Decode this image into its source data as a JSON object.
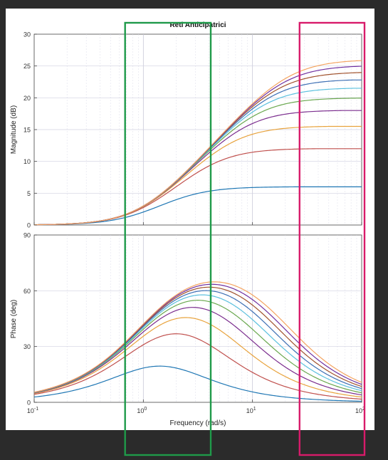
{
  "figure": {
    "title": "Reti Anticipatrici",
    "xlabel": "Frequency  (rad/s)",
    "xscale": "log",
    "xlim": [
      0.1,
      100
    ],
    "x_ticks": [
      {
        "base": "10",
        "exp": "-1"
      },
      {
        "base": "10",
        "exp": "0"
      },
      {
        "base": "10",
        "exp": "1"
      },
      {
        "base": "10",
        "exp": "2"
      }
    ],
    "grid": true,
    "background": "#ffffff",
    "outer_background": "#2b2b2b",
    "highlight_colors": {
      "green": "#1f9a4a",
      "magenta": "#d81b6a"
    },
    "series_colors": [
      "#1f77b4",
      "#c0504d",
      "#e8a33d",
      "#7b2d8e",
      "#6aa84f",
      "#5bc0de",
      "#3d6fb4",
      "#a0522d",
      "#7030a0",
      "#f4a460"
    ]
  },
  "chart_data": [
    {
      "type": "line",
      "title": "Reti Anticipatrici",
      "xlabel": "",
      "ylabel": "Magnitude (dB)",
      "xscale": "log",
      "xlim": [
        0.1,
        100
      ],
      "ylim": [
        0,
        30
      ],
      "y_ticks": [
        "0",
        "5",
        "10",
        "15",
        "20",
        "25",
        "30"
      ],
      "grid": true,
      "model": "lead network |1 + j w/a| / |1 + j w/(m a)|, a = 1",
      "series": [
        {
          "max_gain_db": 6.0,
          "m": 2.0
        },
        {
          "max_gain_db": 12.0,
          "m": 4.0
        },
        {
          "max_gain_db": 15.5,
          "m": 6.0
        },
        {
          "max_gain_db": 18.0,
          "m": 8.0
        },
        {
          "max_gain_db": 20.0,
          "m": 10.0
        },
        {
          "max_gain_db": 21.5,
          "m": 12.0
        },
        {
          "max_gain_db": 22.8,
          "m": 14.0
        },
        {
          "max_gain_db": 24.0,
          "m": 16.0
        },
        {
          "max_gain_db": 25.0,
          "m": 18.0
        },
        {
          "max_gain_db": 26.0,
          "m": 20.0
        }
      ]
    },
    {
      "type": "line",
      "title": "",
      "xlabel": "Frequency  (rad/s)",
      "ylabel": "Phase (deg)",
      "xscale": "log",
      "xlim": [
        0.1,
        100
      ],
      "ylim": [
        0,
        90
      ],
      "y_ticks": [
        "0",
        "30",
        "60",
        "90"
      ],
      "grid": true,
      "model": "phase = atan(w) - atan(w/m), a = 1",
      "series": [
        {
          "max_phase_deg": 19.5,
          "m": 2.0
        },
        {
          "max_phase_deg": 36.9,
          "m": 4.0
        },
        {
          "max_phase_deg": 45.6,
          "m": 6.0
        },
        {
          "max_phase_deg": 51.1,
          "m": 8.0
        },
        {
          "max_phase_deg": 54.9,
          "m": 10.0
        },
        {
          "max_phase_deg": 57.8,
          "m": 12.0
        },
        {
          "max_phase_deg": 60.0,
          "m": 14.0
        },
        {
          "max_phase_deg": 61.9,
          "m": 16.0
        },
        {
          "max_phase_deg": 63.4,
          "m": 18.0
        },
        {
          "max_phase_deg": 64.8,
          "m": 20.0
        }
      ]
    }
  ],
  "highlights": [
    {
      "color": "green",
      "x_range_data": [
        0.68,
        3.9
      ]
    },
    {
      "color": "magenta",
      "x_range_data": [
        27,
        100
      ]
    }
  ]
}
